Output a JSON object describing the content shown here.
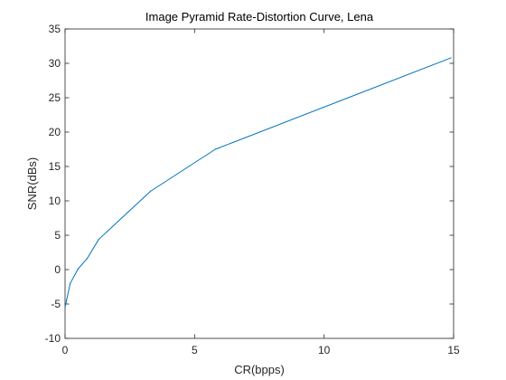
{
  "chart_data": {
    "type": "line",
    "title": "Image Pyramid Rate-Distortion Curve, Lena",
    "xlabel": "CR(bpps)",
    "ylabel": "SNR(dBs)",
    "xlim": [
      0,
      15
    ],
    "ylim": [
      -10,
      35
    ],
    "xticks": [
      0,
      5,
      10,
      15
    ],
    "yticks": [
      -10,
      -5,
      0,
      5,
      10,
      15,
      20,
      25,
      30,
      35
    ],
    "grid": false,
    "line_color": "#0072BD",
    "series": [
      {
        "values": [
          [
            0.0,
            -5.5
          ],
          [
            0.06,
            -4.4
          ],
          [
            0.2,
            -2.0
          ],
          [
            0.5,
            0.1
          ],
          [
            0.85,
            1.6
          ],
          [
            1.3,
            4.4
          ],
          [
            3.3,
            11.4
          ],
          [
            5.8,
            17.5
          ],
          [
            14.9,
            30.8
          ]
        ]
      }
    ]
  }
}
